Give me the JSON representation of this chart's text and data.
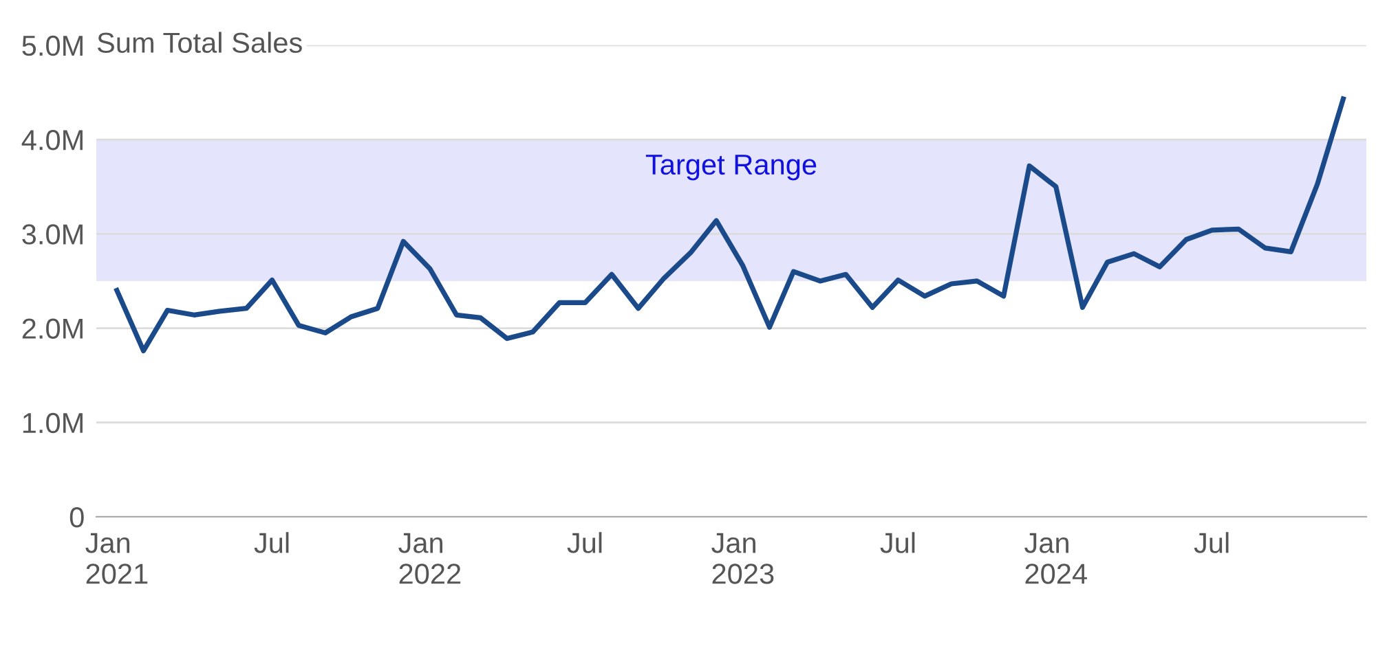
{
  "chart_data": {
    "type": "line",
    "ylabel": "Sum Total Sales",
    "x": [
      "2021-01",
      "2021-02",
      "2021-03",
      "2021-04",
      "2021-05",
      "2021-06",
      "2021-07",
      "2021-08",
      "2021-09",
      "2021-10",
      "2021-11",
      "2021-12",
      "2022-01",
      "2022-02",
      "2022-03",
      "2022-04",
      "2022-05",
      "2022-06",
      "2022-07",
      "2022-08",
      "2022-09",
      "2022-10",
      "2022-11",
      "2022-12",
      "2023-01",
      "2023-02",
      "2023-03",
      "2023-04",
      "2023-05",
      "2023-06",
      "2023-07",
      "2023-08",
      "2023-09",
      "2023-10",
      "2023-11",
      "2023-12",
      "2024-01",
      "2024-02",
      "2024-03",
      "2024-04",
      "2024-05",
      "2024-06",
      "2024-07",
      "2024-08",
      "2024-09",
      "2024-10",
      "2024-11",
      "2024-12"
    ],
    "series": [
      {
        "color": "#1a4a8a",
        "values": [
          2.4,
          1.76,
          2.19,
          2.14,
          2.18,
          2.21,
          2.51,
          2.03,
          1.95,
          2.12,
          2.21,
          2.92,
          2.63,
          2.14,
          2.11,
          1.89,
          1.96,
          2.27,
          2.27,
          2.57,
          2.21,
          2.53,
          2.8,
          3.14,
          2.66,
          2.01,
          2.6,
          2.5,
          2.57,
          2.22,
          2.51,
          2.34,
          2.47,
          2.5,
          2.34,
          3.72,
          3.5,
          2.22,
          2.7,
          2.79,
          2.65,
          2.94,
          3.04,
          3.05,
          2.85,
          2.81,
          3.53,
          4.43
        ]
      }
    ],
    "ylim": [
      0,
      5.0
    ],
    "yticks": [
      0,
      {
        "value": 1,
        "label": "1.0M"
      },
      {
        "value": 2,
        "label": "2.0M"
      },
      {
        "value": 3,
        "label": "3.0M"
      },
      {
        "value": 4,
        "label": "4.0M"
      },
      {
        "value": 5,
        "label": "5.0M"
      }
    ],
    "xlim": [
      "2020-12-08",
      "2024-12-28"
    ],
    "xticks": [
      {
        "value": "2021-01",
        "label": "Jan\n2021"
      },
      {
        "value": "2021-07",
        "label": "Jul"
      },
      {
        "value": "2022-01",
        "label": "Jan\n2022"
      },
      {
        "value": "2022-07",
        "label": "Jul"
      },
      {
        "value": "2023-01",
        "label": "Jan\n2023"
      },
      {
        "value": "2023-07",
        "label": "Jul"
      },
      {
        "value": "2024-01",
        "label": "Jan\n2024"
      },
      {
        "value": "2024-07",
        "label": "Jul"
      }
    ],
    "bands": [
      {
        "axis": "y",
        "from": 2.5,
        "to": 4.0,
        "label": "Target Range",
        "color": "#e4e4fc"
      }
    ],
    "grid": "y",
    "marker": "none",
    "line_style": "solid"
  }
}
